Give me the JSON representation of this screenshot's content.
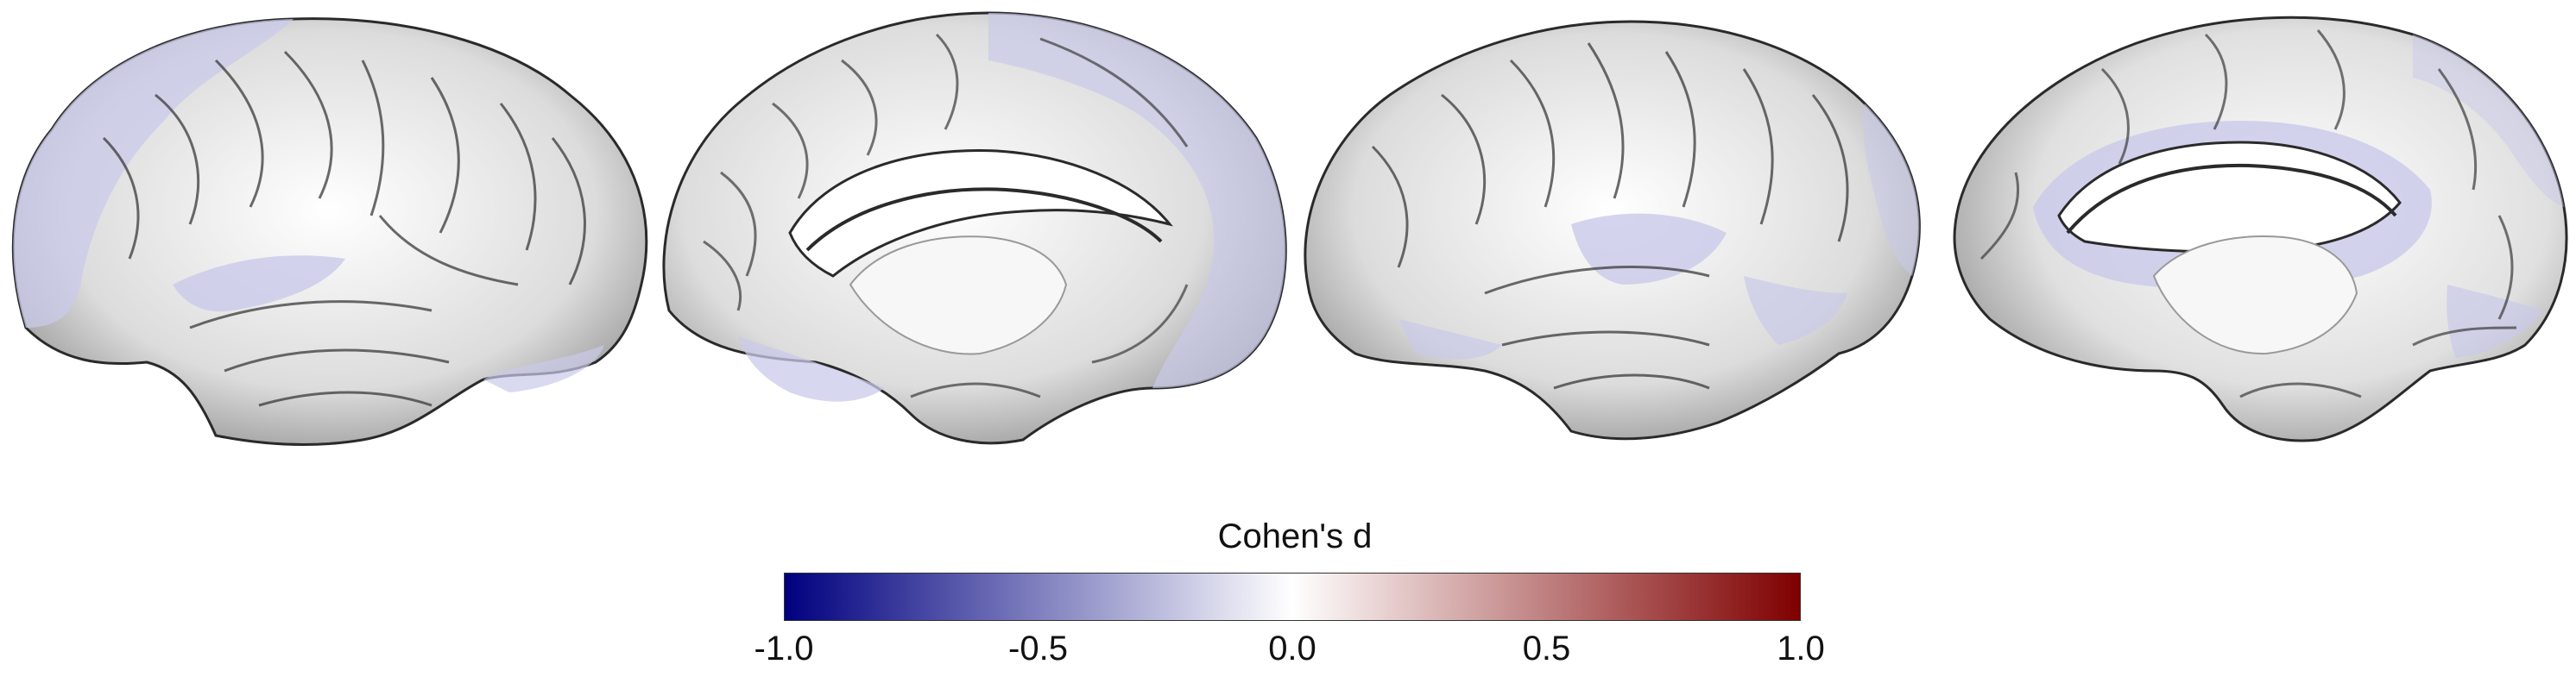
{
  "colorbar": {
    "title": "Cohen's d",
    "min": -1.0,
    "max": 1.0,
    "colormap": [
      "#00007f",
      "#ffffff",
      "#7f0000"
    ],
    "ticks": [
      {
        "value": -1.0,
        "label": "-1.0"
      },
      {
        "value": -0.5,
        "label": "-0.5"
      },
      {
        "value": 0.0,
        "label": "0.0"
      },
      {
        "value": 0.5,
        "label": "0.5"
      },
      {
        "value": 1.0,
        "label": "1.0"
      }
    ]
  },
  "views": [
    {
      "name": "left-lateral",
      "tint_value": -0.15
    },
    {
      "name": "left-medial",
      "tint_value": -0.15
    },
    {
      "name": "right-lateral",
      "tint_value": -0.15
    },
    {
      "name": "right-medial",
      "tint_value": -0.15
    }
  ],
  "colors": {
    "tint": "#c9c9ea",
    "cortex": "#e8e8e8",
    "outline": "#2a2a2a"
  }
}
